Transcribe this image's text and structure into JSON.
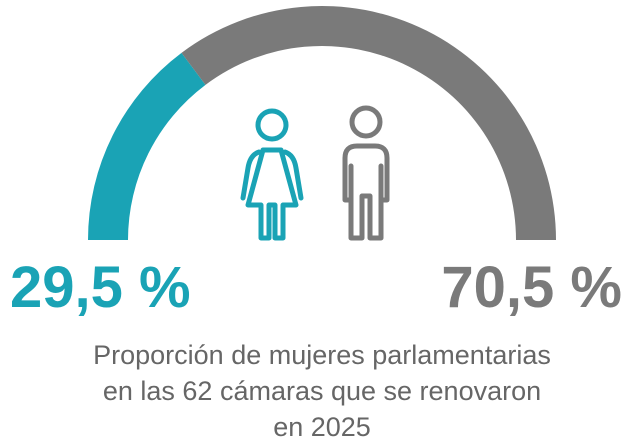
{
  "chart_data": {
    "type": "half-donut",
    "values": [
      29.5,
      70.5
    ],
    "value_labels": [
      "29,5 %",
      "70,5 %"
    ],
    "colors": [
      "#1aa3b5",
      "#7a7a7a"
    ],
    "title": [
      "Proporción de mujeres parlamentarias",
      "en las 62 cámaras que se renovaron",
      "en 2025"
    ]
  }
}
